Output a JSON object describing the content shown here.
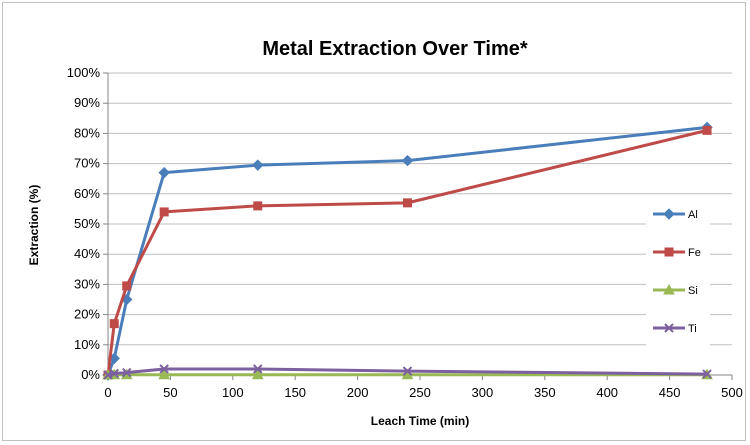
{
  "chart_data": {
    "type": "line",
    "title": "Metal Extraction Over Time*",
    "xlabel": "Leach Time (min)",
    "ylabel": "Extraction (%)",
    "xlim": [
      0,
      500
    ],
    "ylim": [
      0,
      100
    ],
    "x_ticks": [
      "0",
      "50",
      "100",
      "150",
      "200",
      "250",
      "300",
      "350",
      "400",
      "450",
      "500"
    ],
    "y_ticks": [
      "0%",
      "10%",
      "20%",
      "30%",
      "40%",
      "50%",
      "60%",
      "70%",
      "80%",
      "90%",
      "100%"
    ],
    "grid": "horizontal",
    "legend_position": "right",
    "series": [
      {
        "name": "Al",
        "color": "#4a7ebb",
        "marker": "diamond",
        "points": [
          [
            0,
            0
          ],
          [
            5,
            5.5
          ],
          [
            15,
            25
          ],
          [
            45,
            67
          ],
          [
            120,
            69.5
          ],
          [
            240,
            71
          ],
          [
            480,
            82
          ]
        ]
      },
      {
        "name": "Fe",
        "color": "#be4b48",
        "marker": "square",
        "points": [
          [
            0,
            0
          ],
          [
            5,
            17
          ],
          [
            15,
            29.5
          ],
          [
            45,
            54
          ],
          [
            120,
            56
          ],
          [
            240,
            57
          ],
          [
            480,
            81
          ]
        ]
      },
      {
        "name": "Si",
        "color": "#98b954",
        "marker": "triangle",
        "points": [
          [
            0,
            0
          ],
          [
            5,
            0.1
          ],
          [
            15,
            0.1
          ],
          [
            45,
            0.1
          ],
          [
            120,
            0.1
          ],
          [
            240,
            0.1
          ],
          [
            480,
            0.1
          ]
        ]
      },
      {
        "name": "Ti",
        "color": "#7d60a0",
        "marker": "x",
        "points": [
          [
            0,
            0
          ],
          [
            5,
            0.5
          ],
          [
            15,
            0.8
          ],
          [
            45,
            2
          ],
          [
            120,
            2
          ],
          [
            240,
            1.3
          ],
          [
            480,
            0.3
          ]
        ]
      }
    ]
  }
}
